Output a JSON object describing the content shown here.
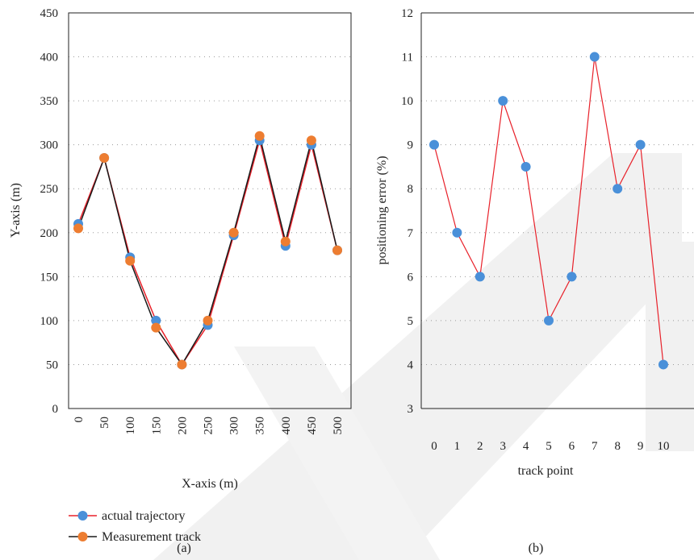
{
  "chart_data": [
    {
      "type": "line",
      "panel_label": "(a)",
      "xlabel": "X-axis (m)",
      "ylabel": "Y-axis (m)",
      "x": [
        0,
        50,
        100,
        150,
        200,
        250,
        300,
        350,
        400,
        450,
        500
      ],
      "xticks": [
        "0",
        "50",
        "100",
        "150",
        "200",
        "250",
        "300",
        "350",
        "400",
        "450",
        "500"
      ],
      "ylim": [
        0,
        450
      ],
      "yticks": [
        0,
        50,
        100,
        150,
        200,
        250,
        300,
        350,
        400,
        450
      ],
      "grid": true,
      "legend_placement": "bottom",
      "series": [
        {
          "name": "actual trajectory",
          "values": [
            210,
            285,
            172,
            100,
            50,
            95,
            197,
            305,
            185,
            300,
            180
          ],
          "line_color": "#e8212a",
          "marker_color": "#4a90d9"
        },
        {
          "name": "Measurement track",
          "values": [
            205,
            285,
            168,
            92,
            50,
            100,
            200,
            310,
            190,
            305,
            180
          ],
          "line_color": "#1a1a1a",
          "marker_color": "#ed7d31"
        }
      ]
    },
    {
      "type": "line",
      "panel_label": "(b)",
      "xlabel": "track point",
      "ylabel": "positioning error (%)",
      "x": [
        0,
        1,
        2,
        3,
        4,
        5,
        6,
        7,
        8,
        9,
        10
      ],
      "xticks": [
        "0",
        "1",
        "2",
        "3",
        "4",
        "5",
        "6",
        "7",
        "8",
        "9",
        "10"
      ],
      "ylim": [
        3,
        12
      ],
      "yticks": [
        3,
        4,
        5,
        6,
        7,
        8,
        9,
        10,
        11,
        12
      ],
      "grid": true,
      "series": [
        {
          "values": [
            9,
            7,
            6,
            10,
            8.5,
            5,
            6,
            11,
            8,
            9,
            4
          ],
          "line_color": "#e8212a",
          "marker_color": "#4a90d9"
        }
      ]
    }
  ]
}
